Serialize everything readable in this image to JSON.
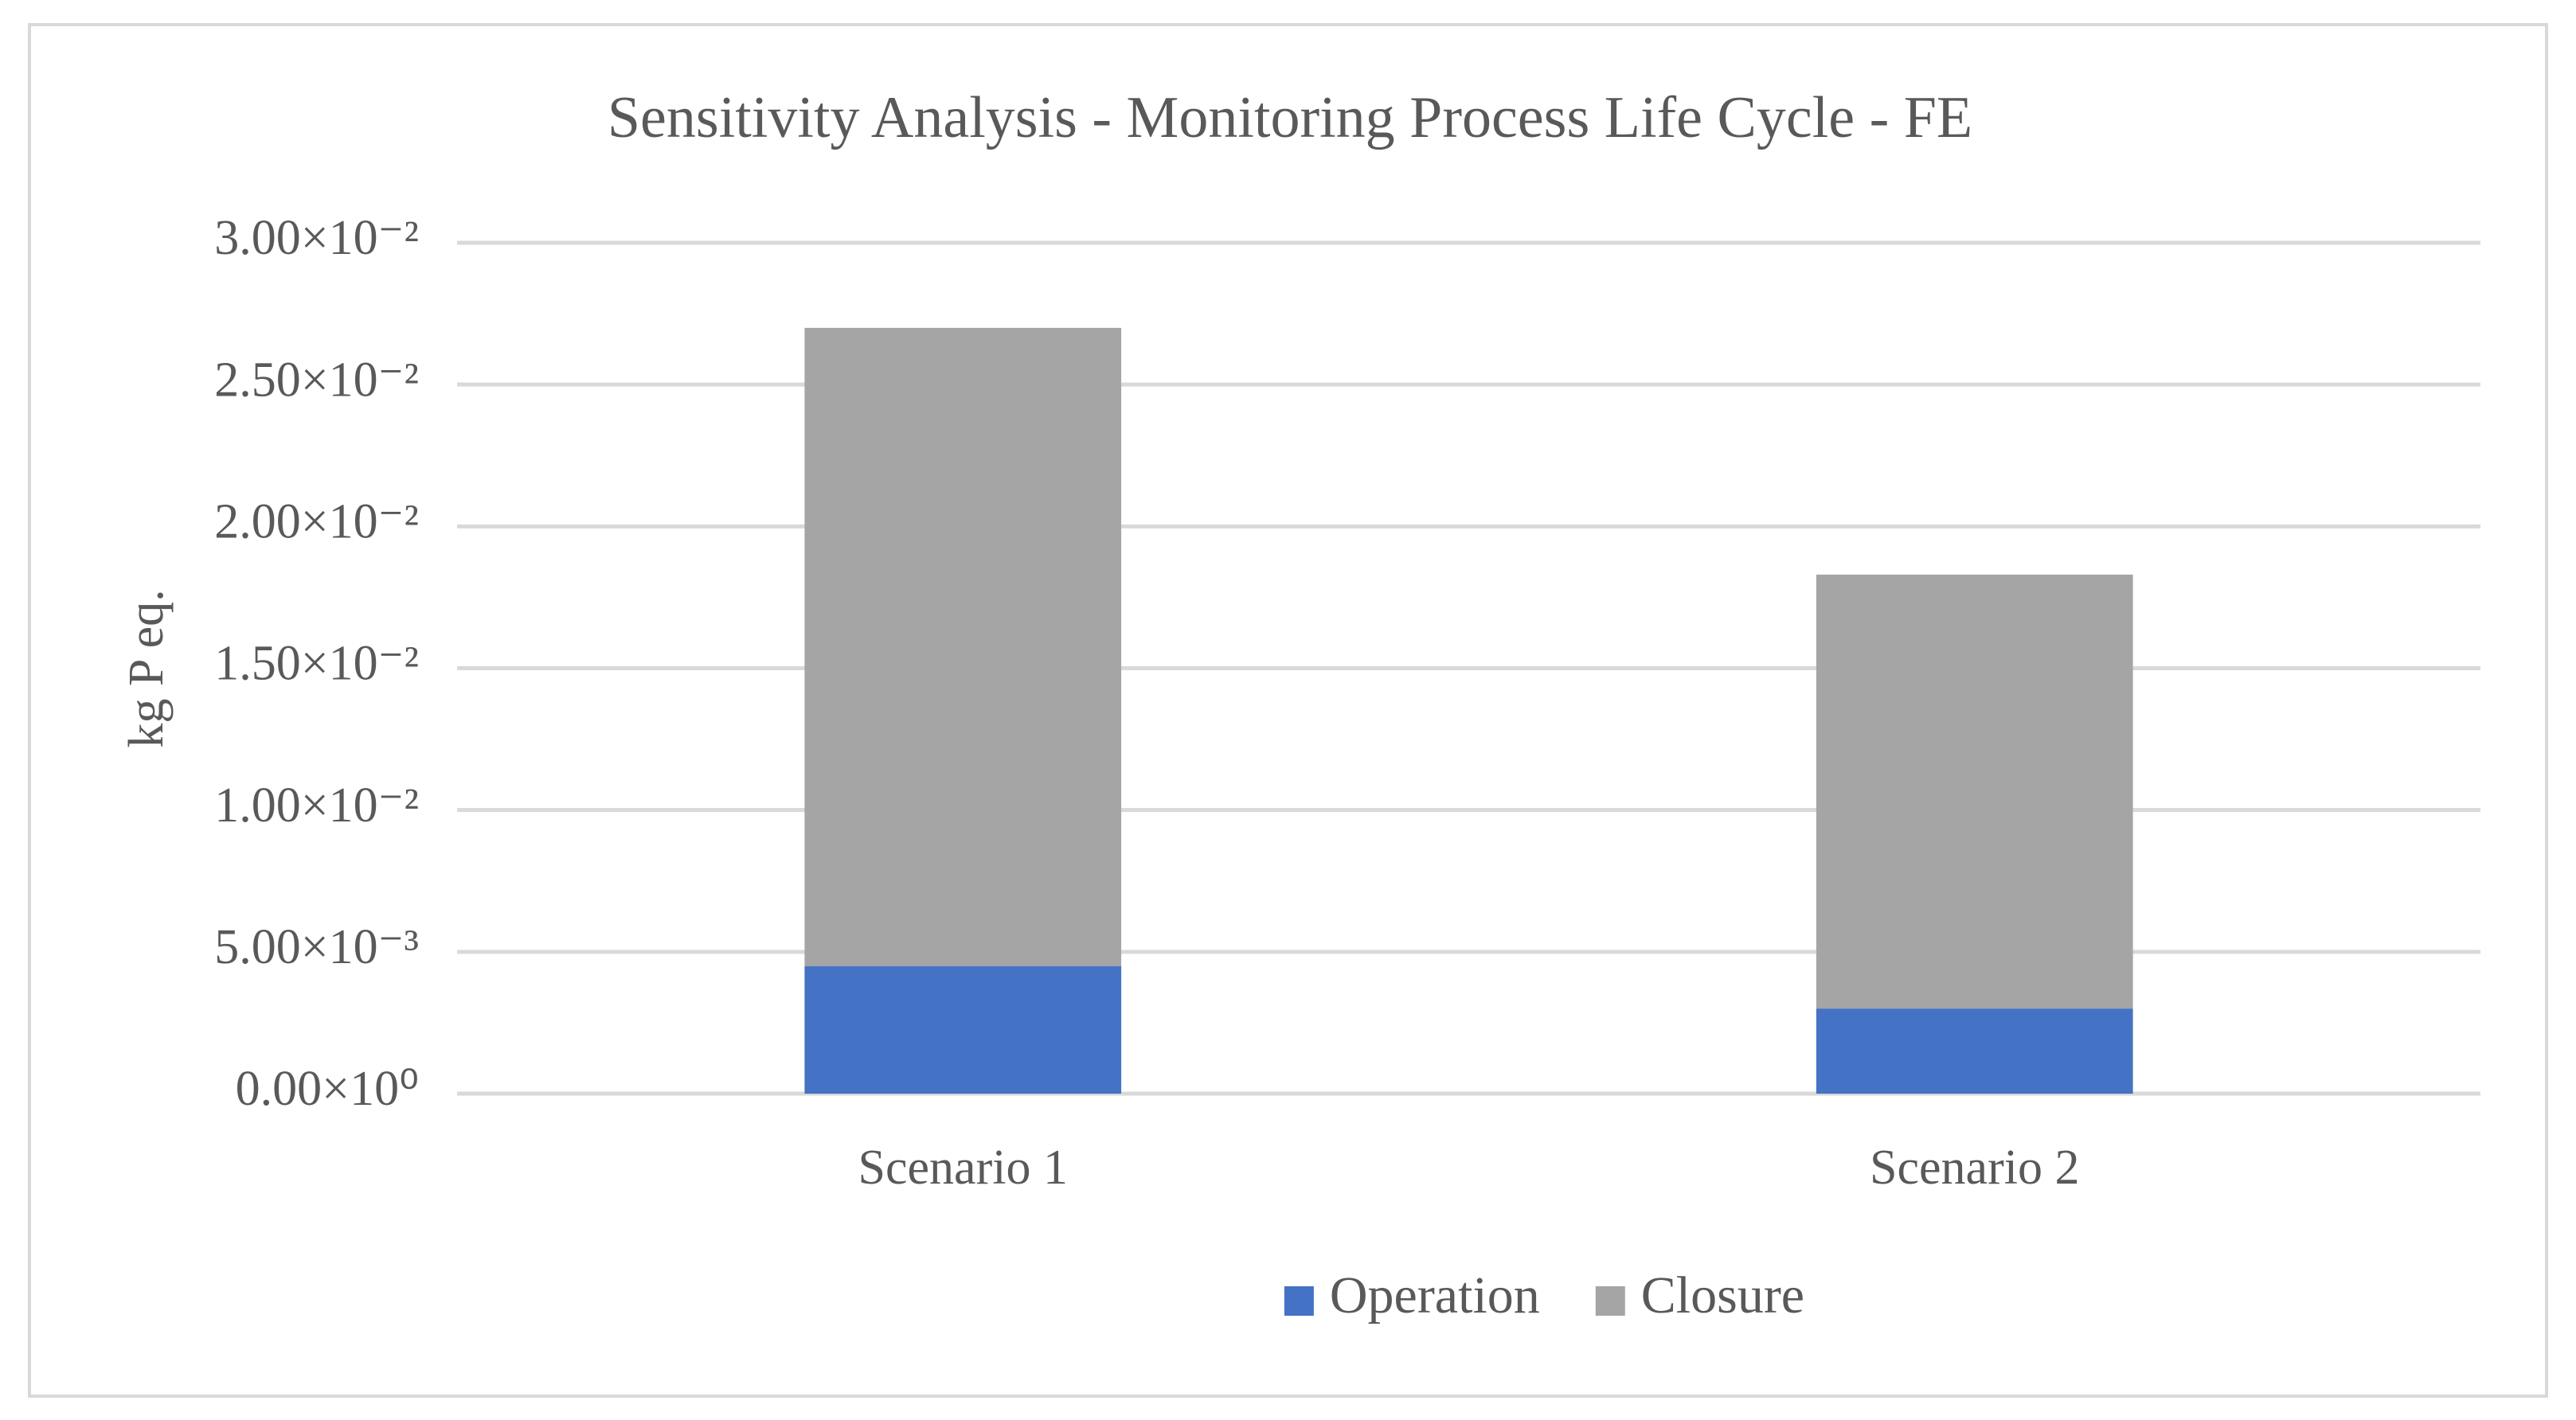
{
  "chart_data": {
    "type": "stacked-bar",
    "title": "Sensitivity Analysis - Monitoring Process Life Cycle - FE",
    "y_label": "kg P eq.",
    "categories": [
      "Scenario 1",
      "Scenario 2"
    ],
    "series": [
      {
        "name": "Operation",
        "color": "#4472c4",
        "values": [
          0.0045,
          0.003
        ]
      },
      {
        "name": "Closure",
        "color": "#a5a5a5",
        "values": [
          0.0225,
          0.0153
        ]
      }
    ],
    "ylim": [
      0,
      0.03
    ],
    "yticks": [
      {
        "value": 0,
        "label": "0.00×10⁰"
      },
      {
        "value": 0.005,
        "label": "5.00×10⁻³"
      },
      {
        "value": 0.01,
        "label": "1.00×10⁻²"
      },
      {
        "value": 0.015,
        "label": "1.50×10⁻²"
      },
      {
        "value": 0.02,
        "label": "2.00×10⁻²"
      },
      {
        "value": 0.025,
        "label": "2.50×10⁻²"
      },
      {
        "value": 0.03,
        "label": "3.00×10⁻²"
      }
    ],
    "grid": true,
    "legend": "bottom"
  }
}
